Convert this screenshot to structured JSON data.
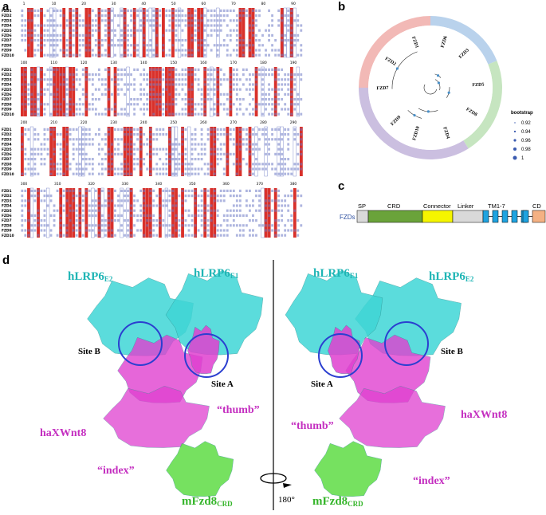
{
  "panels": {
    "a": "a",
    "b": "b",
    "c": "c",
    "d": "d"
  },
  "alignment": {
    "sequence_names": [
      "FZD1",
      "FZD2",
      "FZD3",
      "FZD4",
      "FZD5",
      "FZD6",
      "FZD7",
      "FZD8",
      "FZD9",
      "FZD10"
    ],
    "blocks": [
      {
        "ruler": [
          "1",
          "10",
          "20",
          "30",
          "40",
          "50",
          "60",
          "70",
          "80",
          "90"
        ]
      },
      {
        "ruler": [
          "100",
          "110",
          "120",
          "130",
          "140",
          "150",
          "160",
          "170",
          "180",
          "190"
        ]
      },
      {
        "ruler": [
          "200",
          "210",
          "220",
          "230",
          "240",
          "250",
          "260",
          "270",
          "280",
          "290"
        ]
      },
      {
        "ruler": [
          "300",
          "310",
          "320",
          "330",
          "340",
          "350",
          "360",
          "370",
          "380"
        ]
      }
    ],
    "colors": {
      "conserved": "#d9312b",
      "similar": "#e8514a",
      "text": "#3b4db0"
    }
  },
  "tree": {
    "leaves": [
      "FZD1",
      "FZD2",
      "FZD7",
      "FZD9",
      "FZD10",
      "FZD4",
      "FZD8",
      "FZD5",
      "FZD3",
      "FZD6"
    ],
    "groups": [
      {
        "color": "#f2b9b6"
      },
      {
        "color": "#b9d2ec"
      },
      {
        "color": "#c6e5c0"
      },
      {
        "color": "#cbbfe0"
      }
    ],
    "legend": {
      "title": "bootstrap",
      "entries": [
        "0.92",
        "0.94",
        "0.96",
        "0.98",
        "1"
      ]
    }
  },
  "domain_diagram": {
    "label": "FZDs",
    "segments": [
      {
        "label": "SP",
        "color": "#d9d9d9"
      },
      {
        "label": "CRD",
        "color": "#6aa33a"
      },
      {
        "label": "Connector",
        "color": "#f5f500"
      },
      {
        "label": "Linker",
        "color": "#d9d9d9"
      },
      {
        "label": "TM1-7",
        "color": "#1fa3e0"
      },
      {
        "label": "CD",
        "color": "#f4b183"
      }
    ]
  },
  "structure": {
    "left": {
      "lrp_e2": {
        "main": "hLRP6",
        "sub": "E2"
      },
      "lrp_e1": {
        "main": "hLRP6",
        "sub": "E1"
      },
      "site_b": "Site B",
      "site_a": "Site A",
      "thumb": "“thumb”",
      "wnt": "haXWnt8",
      "index": "“index”",
      "fzd": {
        "main": "mFzd8",
        "sub": "CRD"
      }
    },
    "right": {
      "lrp_e1": {
        "main": "hLRP6",
        "sub": "E1"
      },
      "lrp_e2": {
        "main": "hLRP6",
        "sub": "E2"
      },
      "site_b": "Site B",
      "site_a": "Site A",
      "thumb": "“thumb”",
      "wnt": "haXWnt8",
      "index": "“index”",
      "fzd": {
        "main": "mFzd8",
        "sub": "CRD"
      }
    },
    "rotation": "180°",
    "colors": {
      "lrp": "#3fd6d6",
      "wnt": "#e040d0",
      "fzd": "#5fdc45",
      "circle": "#2b3fd0",
      "lrp_text": "#1fb5b5",
      "wnt_text": "#c42fc0",
      "fzd_text": "#35b52a"
    }
  }
}
